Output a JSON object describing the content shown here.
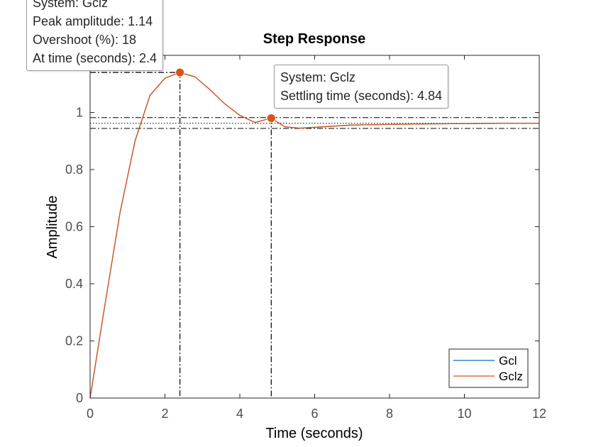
{
  "chart_data": {
    "type": "line",
    "title": "Step Response",
    "xlabel": "Time (seconds)",
    "ylabel": "Amplitude",
    "xlim": [
      0,
      12
    ],
    "ylim": [
      0,
      1.2
    ],
    "x_ticks": [
      "0",
      "2",
      "4",
      "6",
      "8",
      "10",
      "12"
    ],
    "y_ticks": [
      "0",
      "0.2",
      "0.4",
      "0.6",
      "0.8",
      "1"
    ],
    "grid": false,
    "legend_position": "bottom-right",
    "series": [
      {
        "name": "Gcl",
        "color": "#0072BD",
        "x": [
          0,
          0.4,
          0.8,
          1.2,
          1.6,
          2.0,
          2.4,
          2.8,
          3.2,
          3.6,
          4.0,
          4.4,
          4.84,
          5.2,
          5.6,
          6.0,
          6.5,
          7.0,
          8.0,
          9.0,
          10.0,
          11.0,
          12.0
        ],
        "y": [
          0,
          0.33,
          0.65,
          0.9,
          1.06,
          1.12,
          1.14,
          1.125,
          1.08,
          1.03,
          0.99,
          0.965,
          0.98,
          0.95,
          0.945,
          0.948,
          0.952,
          0.956,
          0.958,
          0.96,
          0.961,
          0.962,
          0.962
        ]
      },
      {
        "name": "Gclz",
        "color": "#D95319",
        "x": [
          0,
          0.4,
          0.8,
          1.2,
          1.6,
          2.0,
          2.4,
          2.8,
          3.2,
          3.6,
          4.0,
          4.4,
          4.84,
          5.2,
          5.6,
          6.0,
          6.5,
          7.0,
          8.0,
          9.0,
          10.0,
          11.0,
          12.0
        ],
        "y": [
          0,
          0.33,
          0.65,
          0.9,
          1.06,
          1.12,
          1.14,
          1.125,
          1.08,
          1.03,
          0.99,
          0.965,
          0.98,
          0.95,
          0.945,
          0.948,
          0.952,
          0.956,
          0.958,
          0.96,
          0.961,
          0.962,
          0.962
        ]
      }
    ],
    "markers": [
      {
        "name": "peak",
        "x": 2.4,
        "y": 1.14,
        "color": "#D95319"
      },
      {
        "name": "settling",
        "x": 4.84,
        "y": 0.98,
        "color": "#D95319"
      }
    ],
    "reference_lines": {
      "peak_x": 2.4,
      "peak_y": 1.14,
      "settling_x": 4.84,
      "settling_band": [
        0.982,
        0.944
      ],
      "final_value": 0.962
    },
    "annotations": [
      {
        "name": "peak-datatip",
        "lines": [
          "System: Gclz",
          "Peak amplitude: 1.14",
          "Overshoot (%): 18",
          "At time (seconds): 2.4"
        ]
      },
      {
        "name": "settling-datatip",
        "lines": [
          "System: Gclz",
          "Settling time (seconds): 4.84"
        ]
      }
    ]
  }
}
